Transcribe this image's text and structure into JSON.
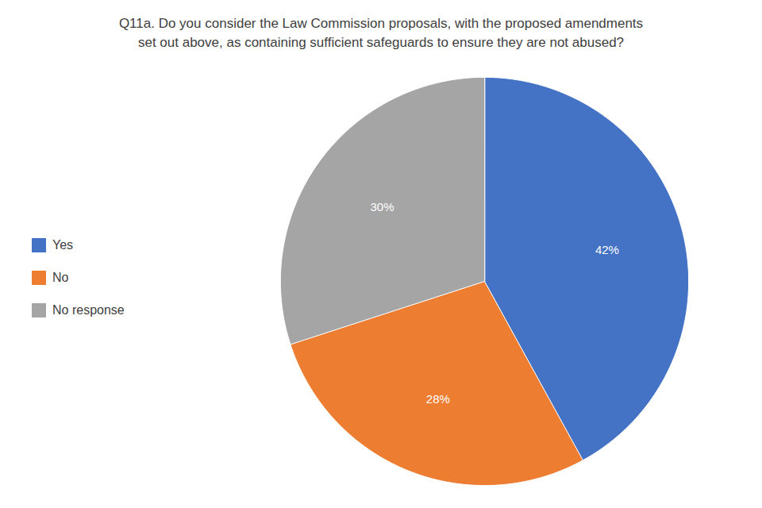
{
  "chart_data": {
    "type": "pie",
    "title": "Q11a. Do you consider the Law Commission proposals, with the proposed amendments",
    "subtitle": "set out above, as containing sufficient safeguards to ensure they are not abused?",
    "categories": [
      "Yes",
      "No",
      "No response"
    ],
    "values": [
      42,
      28,
      30
    ],
    "value_labels": [
      "42%",
      "28%",
      "30%"
    ],
    "colors": [
      "#4472C4",
      "#ED7D31",
      "#A5A5A5"
    ],
    "data_labels": true,
    "legend": "left"
  }
}
